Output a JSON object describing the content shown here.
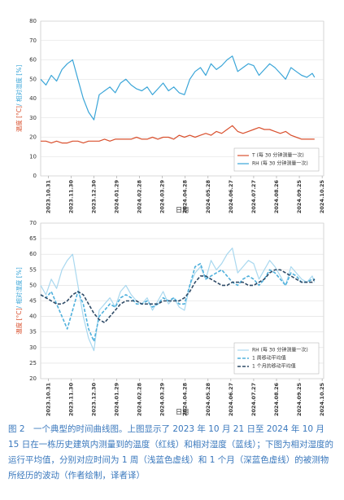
{
  "chart_data": [
    {
      "type": "line",
      "ylabel_parts": [
        {
          "text": "温度 [°C]",
          "color": "#d9502e"
        },
        {
          "text": "/ 相对湿度 [%]",
          "color": "#3aa5d8"
        }
      ],
      "xlabel": "日期",
      "x": [
        "2023.10.21",
        "2023.10.28",
        "2023.11.04",
        "2023.11.11",
        "2023.11.18",
        "2023.11.25",
        "2023.12.02",
        "2023.12.09",
        "2023.12.16",
        "2023.12.23",
        "2023.12.30",
        "2024.01.06",
        "2024.01.13",
        "2024.01.20",
        "2024.01.27",
        "2024.02.03",
        "2024.02.10",
        "2024.02.17",
        "2024.02.24",
        "2024.03.02",
        "2024.03.09",
        "2024.03.16",
        "2024.03.23",
        "2024.03.30",
        "2024.04.06",
        "2024.04.13",
        "2024.04.20",
        "2024.04.27",
        "2024.05.04",
        "2024.05.11",
        "2024.05.18",
        "2024.05.25",
        "2024.06.01",
        "2024.06.08",
        "2024.06.15",
        "2024.06.22",
        "2024.06.29",
        "2024.07.06",
        "2024.07.13",
        "2024.07.20",
        "2024.07.27",
        "2024.08.03",
        "2024.08.10",
        "2024.08.17",
        "2024.08.24",
        "2024.08.31",
        "2024.09.07",
        "2024.09.14",
        "2024.09.21",
        "2024.09.28",
        "2024.10.05",
        "2024.10.12",
        "2024.10.15"
      ],
      "xlim": [
        "2023.10.21",
        "2024.10.27"
      ],
      "xticks": [
        "2023.10.31",
        "2023.11.30",
        "2023.12.30",
        "2024.01.29",
        "2024.02.28",
        "2024.03.29",
        "2024.04.28",
        "2024.05.28",
        "2024.06.27",
        "2024.07.27",
        "2024.08.26",
        "2024.09.25",
        "2024.10.25"
      ],
      "ylim": [
        0,
        80
      ],
      "yticks": [
        0,
        10,
        20,
        30,
        40,
        50,
        60,
        70,
        80
      ],
      "grid": true,
      "legend": "lower right",
      "series": [
        {
          "name": "T (每 30 分钟测量一次)",
          "color": "#d9502e",
          "width": 1.2,
          "dash": "solid",
          "values": [
            18,
            18,
            17,
            18,
            17,
            17,
            18,
            18,
            17,
            18,
            18,
            18,
            19,
            18,
            19,
            19,
            19,
            19,
            20,
            19,
            19,
            20,
            19,
            20,
            20,
            19,
            21,
            20,
            21,
            20,
            21,
            22,
            21,
            23,
            22,
            24,
            26,
            23,
            22,
            23,
            24,
            25,
            24,
            24,
            23,
            22,
            23,
            21,
            20,
            19,
            19,
            19,
            19
          ]
        },
        {
          "name": "RH (每 30 分钟测量一次)",
          "color": "#3aa5d8",
          "width": 1.2,
          "dash": "solid",
          "values": [
            50,
            47,
            52,
            49,
            55,
            58,
            60,
            50,
            40,
            33,
            29,
            42,
            44,
            46,
            43,
            48,
            50,
            47,
            45,
            44,
            46,
            42,
            45,
            48,
            44,
            46,
            43,
            42,
            50,
            54,
            56,
            52,
            58,
            55,
            57,
            60,
            62,
            54,
            56,
            58,
            57,
            52,
            55,
            58,
            56,
            53,
            50,
            56,
            54,
            52,
            51,
            53,
            51
          ]
        }
      ]
    },
    {
      "type": "line",
      "ylabel_parts": [
        {
          "text": "温度 [°C]",
          "color": "#d9502e"
        },
        {
          "text": "/ 相对湿度 [%]",
          "color": "#3aa5d8"
        }
      ],
      "xlabel": "日期",
      "x": [
        "2023.10.21",
        "2023.10.28",
        "2023.11.04",
        "2023.11.11",
        "2023.11.18",
        "2023.11.25",
        "2023.12.02",
        "2023.12.09",
        "2023.12.16",
        "2023.12.23",
        "2023.12.30",
        "2024.01.06",
        "2024.01.13",
        "2024.01.20",
        "2024.01.27",
        "2024.02.03",
        "2024.02.10",
        "2024.02.17",
        "2024.02.24",
        "2024.03.02",
        "2024.03.09",
        "2024.03.16",
        "2024.03.23",
        "2024.03.30",
        "2024.04.06",
        "2024.04.13",
        "2024.04.20",
        "2024.04.27",
        "2024.05.04",
        "2024.05.11",
        "2024.05.18",
        "2024.05.25",
        "2024.06.01",
        "2024.06.08",
        "2024.06.15",
        "2024.06.22",
        "2024.06.29",
        "2024.07.06",
        "2024.07.13",
        "2024.07.20",
        "2024.07.27",
        "2024.08.03",
        "2024.08.10",
        "2024.08.17",
        "2024.08.24",
        "2024.08.31",
        "2024.09.07",
        "2024.09.14",
        "2024.09.21",
        "2024.09.28",
        "2024.10.05",
        "2024.10.12",
        "2024.10.15"
      ],
      "xlim": [
        "2023.10.21",
        "2024.10.27"
      ],
      "xticks": [
        "2023.10.31",
        "2023.11.30",
        "2023.12.30",
        "2024.01.29",
        "2024.02.28",
        "2024.03.29",
        "2024.04.28",
        "2024.05.28",
        "2024.06.27",
        "2024.07.27",
        "2024.08.26",
        "2024.09.25",
        "2024.10.25"
      ],
      "ylim": [
        20,
        70
      ],
      "yticks": [
        20,
        25,
        30,
        35,
        40,
        45,
        50,
        55,
        60,
        65,
        70
      ],
      "grid": true,
      "legend": "lower right",
      "series": [
        {
          "name": "RH (每 30 分钟测量一次)",
          "color": "#a9d8ef",
          "width": 1.2,
          "dash": "solid",
          "values": [
            50,
            47,
            52,
            49,
            55,
            58,
            60,
            50,
            40,
            33,
            29,
            42,
            44,
            46,
            43,
            48,
            50,
            47,
            45,
            44,
            46,
            42,
            45,
            48,
            44,
            46,
            43,
            42,
            50,
            54,
            56,
            52,
            58,
            55,
            57,
            60,
            62,
            54,
            56,
            58,
            57,
            52,
            55,
            58,
            56,
            53,
            50,
            56,
            54,
            52,
            51,
            53,
            51
          ]
        },
        {
          "name": "1 周移动平均值",
          "color": "#4fb0dc",
          "width": 1.6,
          "dash": "dashed",
          "values": [
            47,
            46,
            48,
            44,
            40,
            36,
            42,
            48,
            44,
            36,
            32,
            40,
            42,
            44,
            43,
            46,
            47,
            46,
            44,
            44,
            45,
            43,
            44,
            46,
            45,
            46,
            44,
            44,
            50,
            56,
            57,
            52,
            53,
            54,
            55,
            53,
            51,
            50,
            52,
            53,
            52,
            50,
            52,
            55,
            54,
            52,
            50,
            54,
            53,
            51,
            51,
            52,
            52
          ]
        },
        {
          "name": "1 个月的移动平均值",
          "color": "#2e4a66",
          "width": 1.6,
          "dash": "dashed",
          "values": [
            47,
            46,
            45,
            44,
            44,
            45,
            47,
            48,
            47,
            44,
            41,
            39,
            38,
            40,
            42,
            44,
            45,
            45,
            45,
            44,
            44,
            44,
            44,
            45,
            45,
            45,
            45,
            46,
            48,
            51,
            53,
            53,
            52,
            51,
            50,
            50,
            51,
            51,
            51,
            50,
            50,
            51,
            52,
            54,
            55,
            55,
            54,
            53,
            52,
            51,
            51,
            51,
            52
          ]
        }
      ]
    }
  ],
  "caption": "图 2　一个典型的时间曲线图。上图显示了 2023 年 10 月 21 日至 2024 年 10 月 15 日在一栋历史建筑内测量到的温度（红线）和相对湿度（蓝线）；下图为相对湿度的运行平均值，分别对应时间为 1 周（浅蓝色虚线）和 1 个月（深蓝色虚线）的被测物所经历的波动（作者绘制，译者译）"
}
